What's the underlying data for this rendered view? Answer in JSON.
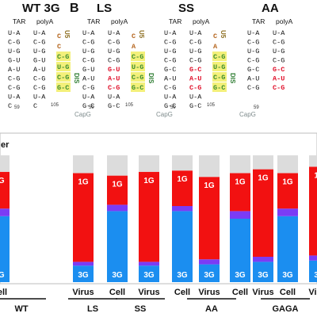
{
  "panel_b_label": "B",
  "structures": [
    {
      "title": "WT 3G",
      "tar": "TAR",
      "polya": "polyA",
      "left_stem": [
        "U-A",
        "C-G",
        "U-G",
        "G-U",
        "A-U",
        "C-G",
        "C-G",
        "U-A",
        "C"
      ],
      "right_loop": [
        "C",
        "C",
        "C-G",
        "U-G",
        "C-G",
        "G-C"
      ],
      "dis": "DIS",
      "u5": "U5",
      "num_left": "59",
      "num_right": "105",
      "capg": ""
    },
    {
      "title": "LS",
      "tar": "TAR",
      "polya": "polyA",
      "left_stem": [
        "U-A",
        "C-G",
        "U-G",
        "C-G",
        "G-U",
        "A-U",
        "C-G",
        "U-A",
        "G-C"
      ],
      "right_loop": [
        "C",
        "A",
        "C-G",
        "U-G",
        "C-G",
        "G-C"
      ],
      "dis": "DIS",
      "u5": "U5",
      "num_left": "59",
      "num_right": "105",
      "capg": "CapG"
    },
    {
      "title": "SS",
      "tar": "TAR",
      "polya": "polyA",
      "left_stem": [
        "U-A",
        "C-G",
        "U-G",
        "C-G",
        "G-C",
        "A-U",
        "C-G",
        "U-A",
        "G-C"
      ],
      "right_loop": [
        "C",
        "A",
        "C-G",
        "U-G",
        "C-G",
        "G-C"
      ],
      "dis": "DIS",
      "u5": "U5",
      "num_left": "59",
      "num_right": "105",
      "capg": "CapG"
    },
    {
      "title": "AA",
      "tar": "TAR",
      "polya": "polyA",
      "left_stem": [
        "U-A",
        "C-G",
        "U-G",
        "C-G",
        "G-C",
        "A-U",
        "C-G"
      ],
      "right_loop": [],
      "dis": "",
      "u5": "",
      "num_left": "59",
      "num_right": "",
      "capg": "CapG"
    }
  ],
  "chart_data": {
    "type": "bar",
    "stacked": true,
    "groups": [
      "WT",
      "LS",
      "SS",
      "AA",
      "GAGA"
    ],
    "categories": [
      "Cell",
      "Virus",
      "Cell",
      "Virus",
      "Cell",
      "Virus",
      "Cell",
      "Virus",
      "Cell",
      "Virus"
    ],
    "legend_fragment": "er",
    "series": [
      {
        "name": "3G",
        "color": "#1b8ef0",
        "values": [
          52,
          13,
          56,
          13,
          56,
          14,
          50,
          16,
          52,
          17
        ]
      },
      {
        "name": "",
        "color": "#7b3cf5",
        "values": [
          6,
          3,
          5,
          3,
          4,
          4,
          6,
          4,
          6,
          4
        ]
      },
      {
        "name": "1G",
        "color": "#f21111",
        "values": [
          29,
          70,
          23,
          71,
          28,
          65,
          30,
          69,
          28,
          70
        ]
      },
      {
        "name": "",
        "color": "#dcdcdc",
        "values": [
          13,
          14,
          16,
          13,
          12,
          17,
          14,
          11,
          14,
          9
        ]
      }
    ],
    "segment_labels": {
      "top": "1G",
      "bottom": "3G"
    },
    "ylim": [
      0,
      100
    ],
    "grid": false
  }
}
